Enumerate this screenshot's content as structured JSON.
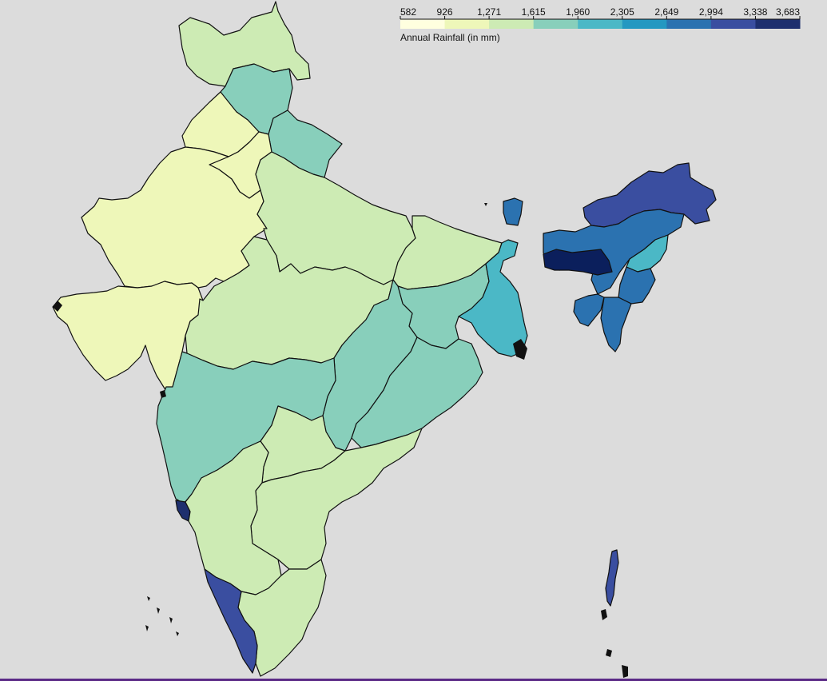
{
  "legend": {
    "title": "Annual Rainfall (in mm)",
    "ticks": [
      "582",
      "926",
      "1,271",
      "1,615",
      "1,960",
      "2,305",
      "2,649",
      "2,994",
      "3,338",
      "3,683"
    ],
    "colors": [
      "#ffffdf",
      "#eef7b9",
      "#cdebb4",
      "#88cfbb",
      "#4bb8c6",
      "#2498c1",
      "#2b72b0",
      "#3a4ea0",
      "#1e2f6e"
    ]
  },
  "map": {
    "country": "India",
    "background": "#dcdcdc",
    "border_color": "#111111",
    "scale_type": "quantize",
    "scale_range": [
      582,
      3683
    ]
  }
}
